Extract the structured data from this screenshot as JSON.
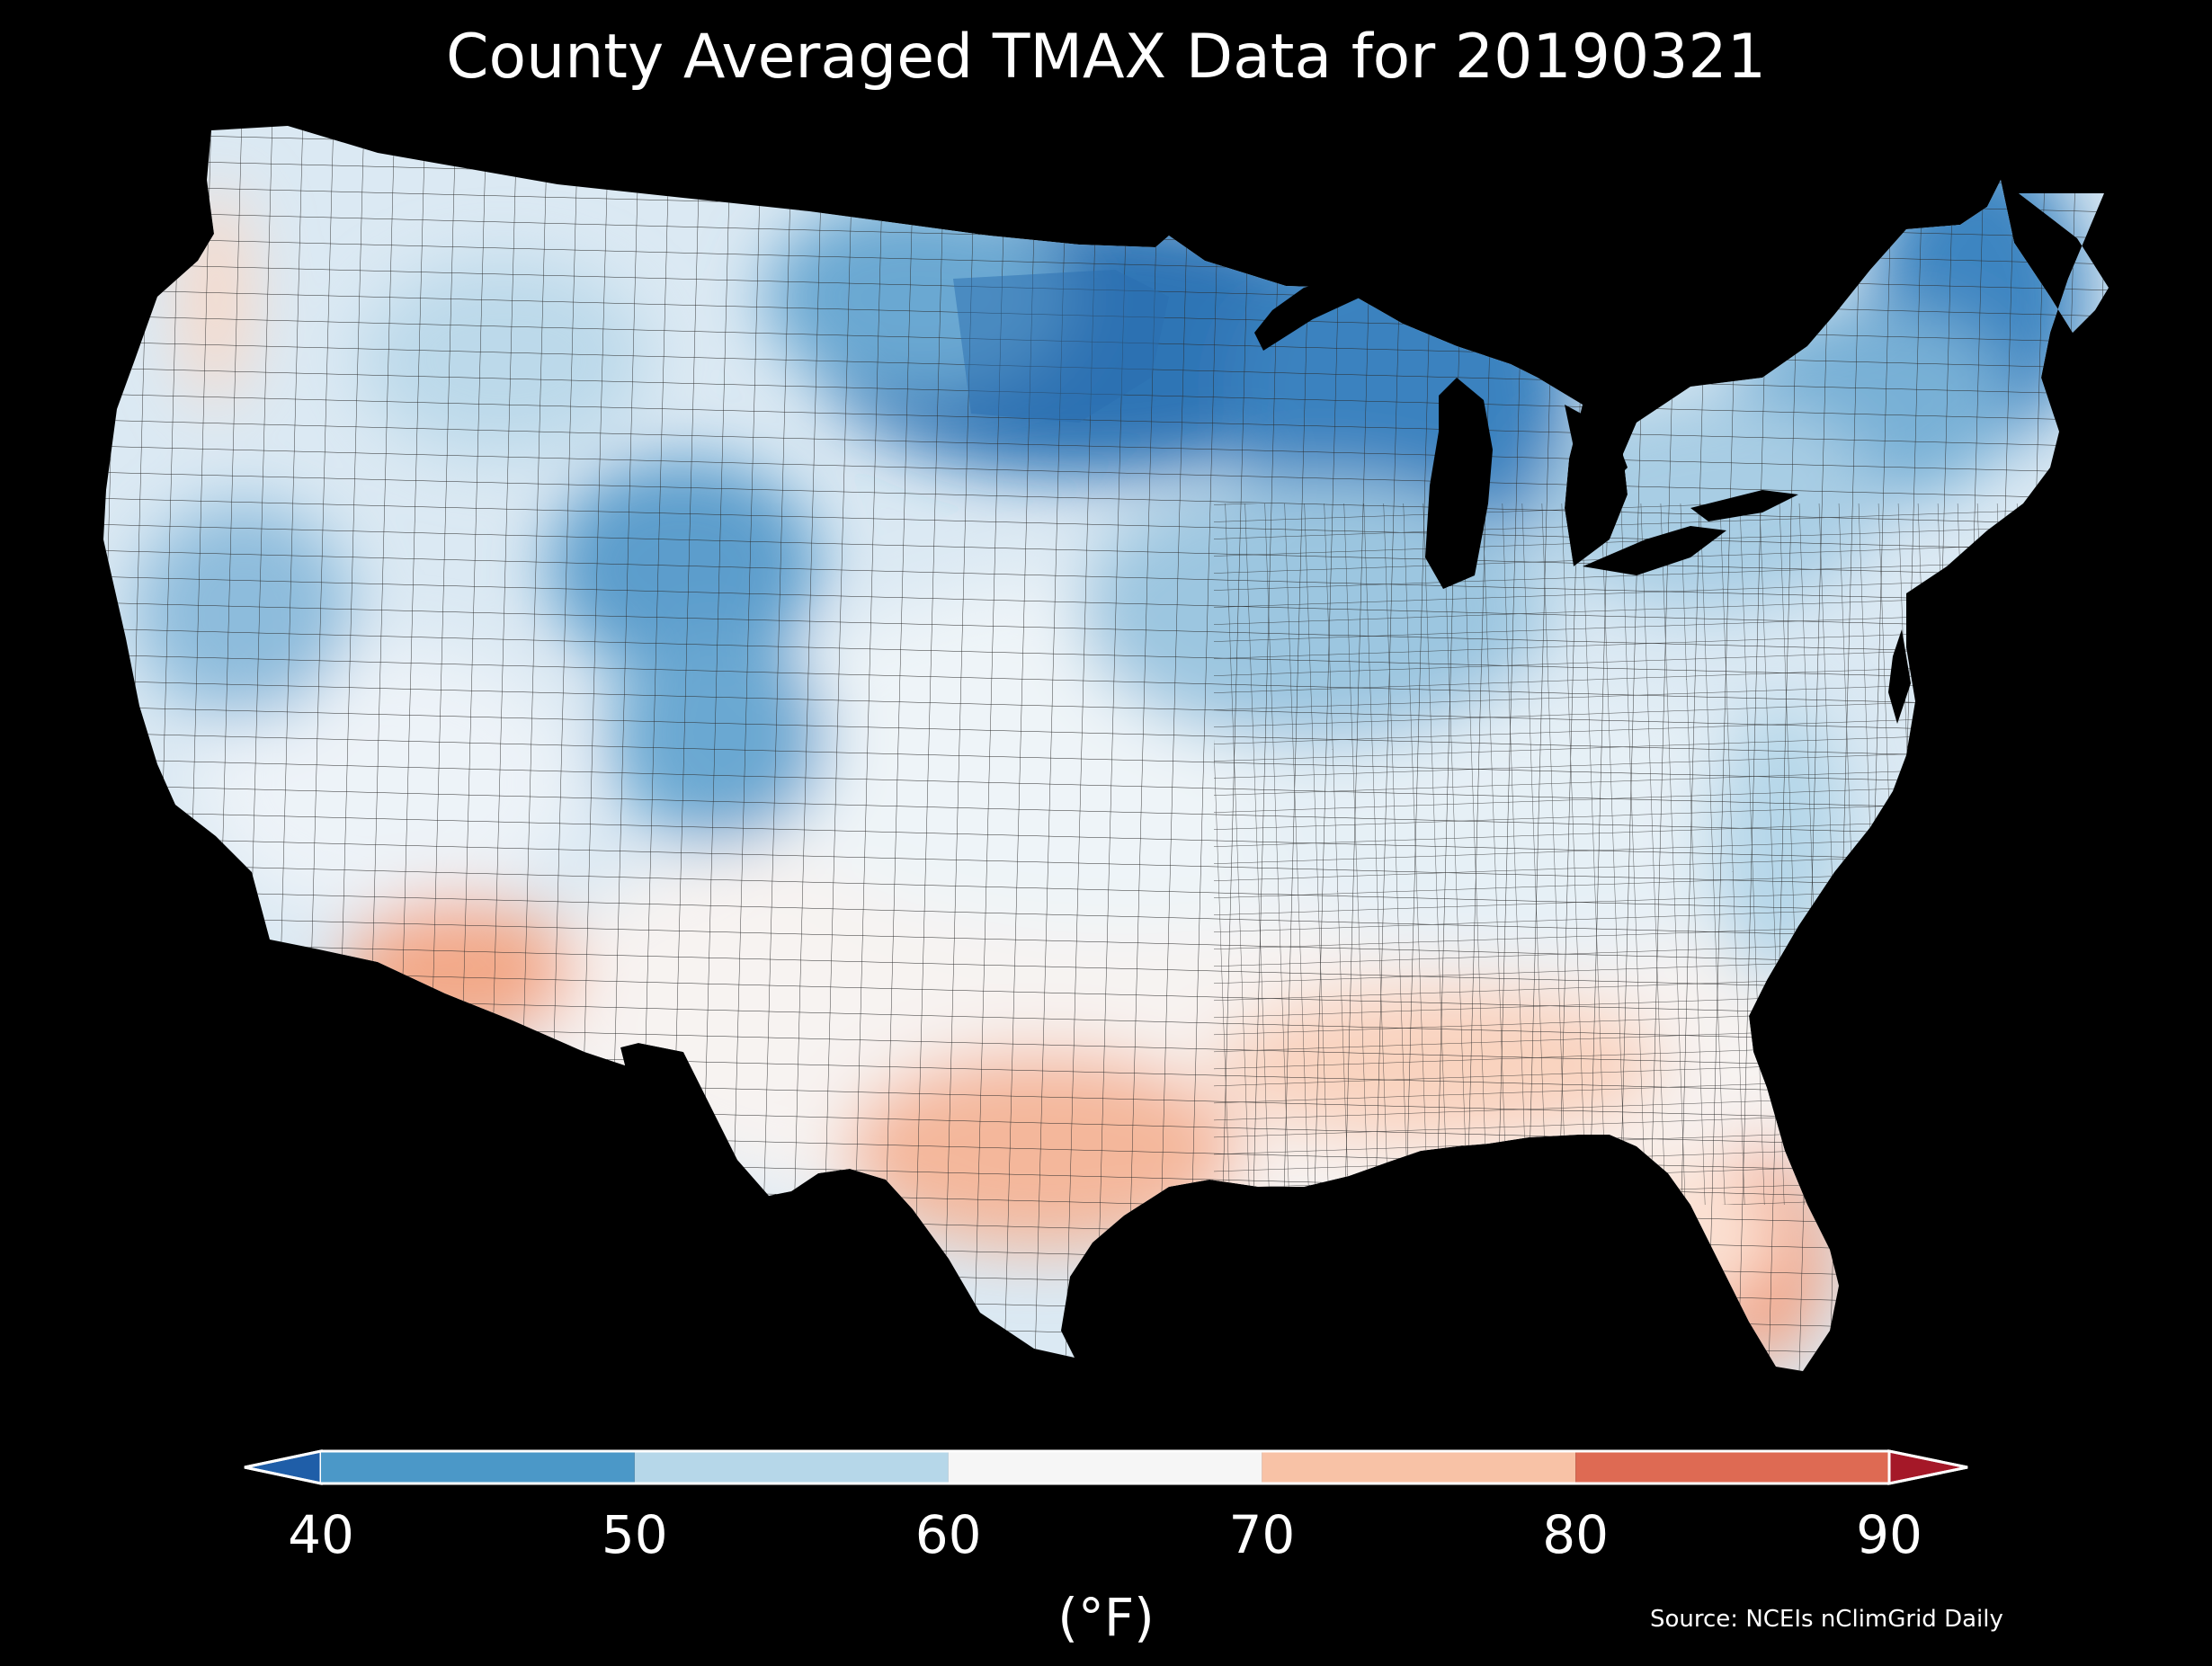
{
  "title": "County Averaged TMAX Data for 20190321",
  "source": "Source: NCEIs nClimGrid Daily",
  "colorbar": {
    "unit": "(°F)",
    "ticks": [
      "40",
      "50",
      "60",
      "70",
      "80",
      "90"
    ],
    "tick_values": [
      40,
      50,
      60,
      70,
      80,
      90
    ],
    "bins": [
      {
        "min": 40,
        "max": 50,
        "color": "#4b98c8"
      },
      {
        "min": 50,
        "max": 60,
        "color": "#b6d7e9"
      },
      {
        "min": 60,
        "max": 70,
        "color": "#f6f6f6"
      },
      {
        "min": 70,
        "max": 80,
        "color": "#f8c2a6"
      },
      {
        "min": 80,
        "max": 90,
        "color": "#de6a53"
      }
    ],
    "under_color": "#1f5ea8",
    "over_color": "#a51828"
  },
  "map": {
    "region": "contiguous-united-states",
    "boundaries": "county",
    "background": "#000000",
    "regional_temperatures_f": [
      {
        "region": "Northern Plains / Upper Midwest",
        "tmax": 44
      },
      {
        "region": "Maine / Northeast",
        "tmax": 47
      },
      {
        "region": "Central Rockies",
        "tmax": 47
      },
      {
        "region": "Great Basin",
        "tmax": 55
      },
      {
        "region": "Southern Plains",
        "tmax": 63
      },
      {
        "region": "Southeast",
        "tmax": 70
      },
      {
        "region": "Arizona",
        "tmax": 75
      },
      {
        "region": "South Texas",
        "tmax": 76
      },
      {
        "region": "South Florida",
        "tmax": 79
      }
    ]
  }
}
